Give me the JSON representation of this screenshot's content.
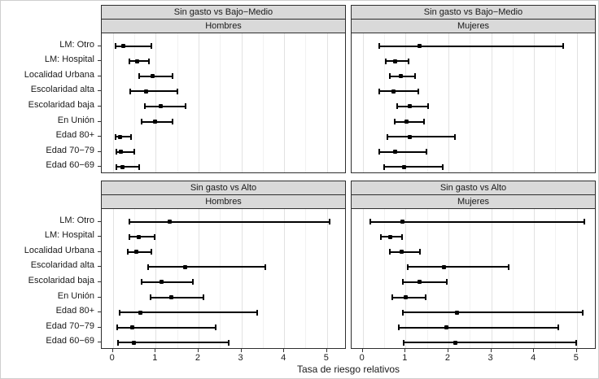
{
  "chart_data": {
    "type": "scatter",
    "subtype": "faceted-forest-plot-with-error-bars",
    "title": "",
    "xlabel": "Tasa de riesgo relativos",
    "ylabel": "",
    "x_ticks": [
      0,
      1,
      2,
      3,
      4,
      5
    ],
    "x_minor_ticks": [
      0.5,
      1.5,
      2.5,
      3.5,
      4.5
    ],
    "xlim": [
      -0.26,
      5.46
    ],
    "grid": "major+minor",
    "legend": "none",
    "point_color": "#000000",
    "strip_bg": "#d9d9d9",
    "panel_bg": "#ffffff",
    "categories": [
      "LM: Otro",
      "LM: Hospital",
      "Localidad Urbana",
      "Escolaridad alta",
      "Escolaridad baja",
      "En Unión",
      "Edad 80+",
      "Edad 70−79",
      "Edad 60−69"
    ],
    "facets": [
      {
        "comparison": "Sin gasto vs Bajo−Medio",
        "sex": "Hombres",
        "grid_col": 0,
        "grid_row": 0,
        "estimates": [
          0.24,
          0.57,
          0.93,
          0.77,
          1.11,
          0.98,
          0.16,
          0.19,
          0.22
        ],
        "ci_low": [
          0.05,
          0.36,
          0.6,
          0.39,
          0.72,
          0.65,
          0.05,
          0.06,
          0.06
        ],
        "ci_high": [
          0.92,
          0.86,
          1.41,
          1.53,
          1.71,
          1.42,
          0.45,
          0.52,
          0.63
        ]
      },
      {
        "comparison": "Sin gasto vs Bajo−Medio",
        "sex": "Mujeres",
        "grid_col": 1,
        "grid_row": 0,
        "estimates": [
          1.33,
          0.76,
          0.89,
          0.71,
          1.1,
          1.02,
          1.1,
          0.76,
          0.96
        ],
        "ci_low": [
          0.36,
          0.52,
          0.62,
          0.36,
          0.78,
          0.72,
          0.56,
          0.36,
          0.49
        ],
        "ci_high": [
          4.7,
          1.09,
          1.25,
          1.31,
          1.54,
          1.45,
          2.18,
          1.51,
          1.89
        ]
      },
      {
        "comparison": "Sin gasto vs Alto",
        "sex": "Hombres",
        "grid_col": 0,
        "grid_row": 1,
        "estimates": [
          1.33,
          0.61,
          0.55,
          1.69,
          1.13,
          1.36,
          0.64,
          0.46,
          0.5
        ],
        "ci_low": [
          0.36,
          0.37,
          0.33,
          0.81,
          0.66,
          0.86,
          0.13,
          0.08,
          0.1
        ],
        "ci_high": [
          5.08,
          1.0,
          0.91,
          3.57,
          1.89,
          2.14,
          3.38,
          2.41,
          2.73
        ]
      },
      {
        "comparison": "Sin gasto vs Alto",
        "sex": "Mujeres",
        "grid_col": 1,
        "grid_row": 1,
        "estimates": [
          0.92,
          0.64,
          0.91,
          1.89,
          1.33,
          1.01,
          2.2,
          1.96,
          2.16
        ],
        "ci_low": [
          0.16,
          0.41,
          0.62,
          1.04,
          0.91,
          0.68,
          0.92,
          0.83,
          0.93
        ],
        "ci_high": [
          5.19,
          0.93,
          1.36,
          3.42,
          1.99,
          1.48,
          5.15,
          4.58,
          5.01
        ]
      }
    ]
  }
}
